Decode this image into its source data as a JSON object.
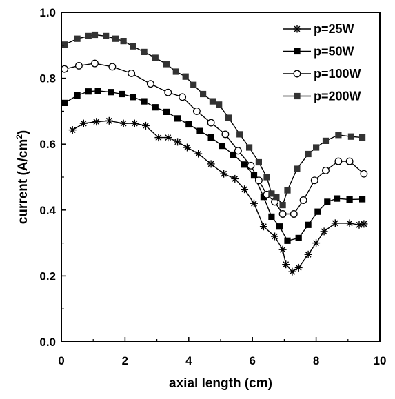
{
  "chart_data": {
    "type": "line",
    "title": "",
    "xlabel": "axial length (cm)",
    "ylabel": "current (A/cm²)",
    "ylabel_parts": {
      "main": "current (A/cm",
      "sup": "2",
      "close": ")"
    },
    "xlim": [
      0,
      10
    ],
    "ylim": [
      0.0,
      1.0
    ],
    "x_ticks": [
      0,
      2,
      4,
      6,
      8,
      10
    ],
    "y_ticks": [
      0.0,
      0.2,
      0.4,
      0.6,
      0.8,
      1.0
    ],
    "x_tick_labels": [
      "0",
      "2",
      "4",
      "6",
      "8",
      "10"
    ],
    "y_tick_labels": [
      "0.0",
      "0.2",
      "0.4",
      "0.6",
      "0.8",
      "1.0"
    ],
    "grid": false,
    "legend_position": "top-right",
    "series": [
      {
        "name": "p=25W",
        "marker": "star",
        "color": "#000000",
        "points": [
          [
            0.35,
            0.643
          ],
          [
            0.7,
            0.663
          ],
          [
            1.1,
            0.668
          ],
          [
            1.5,
            0.671
          ],
          [
            1.95,
            0.663
          ],
          [
            2.3,
            0.663
          ],
          [
            2.65,
            0.656
          ],
          [
            3.05,
            0.62
          ],
          [
            3.35,
            0.62
          ],
          [
            3.65,
            0.607
          ],
          [
            3.95,
            0.59
          ],
          [
            4.3,
            0.571
          ],
          [
            4.7,
            0.54
          ],
          [
            5.1,
            0.51
          ],
          [
            5.45,
            0.495
          ],
          [
            5.75,
            0.463
          ],
          [
            6.05,
            0.42
          ],
          [
            6.35,
            0.35
          ],
          [
            6.7,
            0.32
          ],
          [
            6.95,
            0.28
          ],
          [
            7.05,
            0.235
          ],
          [
            7.25,
            0.213
          ],
          [
            7.45,
            0.225
          ],
          [
            7.75,
            0.265
          ],
          [
            8.0,
            0.3
          ],
          [
            8.25,
            0.335
          ],
          [
            8.6,
            0.36
          ],
          [
            9.05,
            0.36
          ],
          [
            9.35,
            0.355
          ],
          [
            9.5,
            0.358
          ]
        ]
      },
      {
        "name": "p=50W",
        "marker": "filled-square",
        "color": "#000000",
        "points": [
          [
            0.1,
            0.725
          ],
          [
            0.5,
            0.748
          ],
          [
            0.85,
            0.76
          ],
          [
            1.15,
            0.762
          ],
          [
            1.55,
            0.758
          ],
          [
            1.9,
            0.752
          ],
          [
            2.25,
            0.743
          ],
          [
            2.6,
            0.73
          ],
          [
            2.95,
            0.712
          ],
          [
            3.3,
            0.698
          ],
          [
            3.65,
            0.678
          ],
          [
            4.0,
            0.66
          ],
          [
            4.35,
            0.64
          ],
          [
            4.7,
            0.62
          ],
          [
            5.05,
            0.595
          ],
          [
            5.4,
            0.568
          ],
          [
            5.75,
            0.538
          ],
          [
            6.05,
            0.505
          ],
          [
            6.35,
            0.44
          ],
          [
            6.6,
            0.38
          ],
          [
            6.85,
            0.35
          ],
          [
            7.1,
            0.307
          ],
          [
            7.45,
            0.315
          ],
          [
            7.75,
            0.355
          ],
          [
            8.05,
            0.395
          ],
          [
            8.35,
            0.425
          ],
          [
            8.65,
            0.435
          ],
          [
            9.05,
            0.432
          ],
          [
            9.45,
            0.433
          ]
        ]
      },
      {
        "name": "p=100W",
        "marker": "open-circle",
        "color": "#000000",
        "points": [
          [
            0.1,
            0.828
          ],
          [
            0.55,
            0.838
          ],
          [
            1.05,
            0.845
          ],
          [
            1.6,
            0.835
          ],
          [
            2.2,
            0.815
          ],
          [
            2.8,
            0.783
          ],
          [
            3.35,
            0.757
          ],
          [
            3.8,
            0.743
          ],
          [
            4.25,
            0.7
          ],
          [
            4.7,
            0.665
          ],
          [
            5.15,
            0.63
          ],
          [
            5.55,
            0.58
          ],
          [
            5.95,
            0.535
          ],
          [
            6.2,
            0.49
          ],
          [
            6.45,
            0.447
          ],
          [
            6.7,
            0.425
          ],
          [
            6.95,
            0.388
          ],
          [
            7.3,
            0.388
          ],
          [
            7.6,
            0.43
          ],
          [
            7.95,
            0.49
          ],
          [
            8.3,
            0.52
          ],
          [
            8.7,
            0.548
          ],
          [
            9.05,
            0.548
          ],
          [
            9.5,
            0.51
          ]
        ]
      },
      {
        "name": "p=200W",
        "marker": "filled-square",
        "color": "#000000",
        "points": [
          [
            0.1,
            0.902
          ],
          [
            0.5,
            0.92
          ],
          [
            0.85,
            0.928
          ],
          [
            1.05,
            0.932
          ],
          [
            1.4,
            0.928
          ],
          [
            1.7,
            0.92
          ],
          [
            1.95,
            0.913
          ],
          [
            2.25,
            0.897
          ],
          [
            2.6,
            0.88
          ],
          [
            2.95,
            0.862
          ],
          [
            3.3,
            0.843
          ],
          [
            3.6,
            0.82
          ],
          [
            3.9,
            0.805
          ],
          [
            4.15,
            0.78
          ],
          [
            4.45,
            0.752
          ],
          [
            4.75,
            0.73
          ],
          [
            4.95,
            0.72
          ],
          [
            5.25,
            0.68
          ],
          [
            5.6,
            0.63
          ],
          [
            5.9,
            0.59
          ],
          [
            6.2,
            0.545
          ],
          [
            6.45,
            0.5
          ],
          [
            6.6,
            0.45
          ],
          [
            6.75,
            0.44
          ],
          [
            6.95,
            0.415
          ],
          [
            7.1,
            0.46
          ],
          [
            7.4,
            0.525
          ],
          [
            7.75,
            0.57
          ],
          [
            8.0,
            0.59
          ],
          [
            8.3,
            0.61
          ],
          [
            8.7,
            0.628
          ],
          [
            9.1,
            0.623
          ],
          [
            9.45,
            0.62
          ]
        ]
      }
    ]
  }
}
